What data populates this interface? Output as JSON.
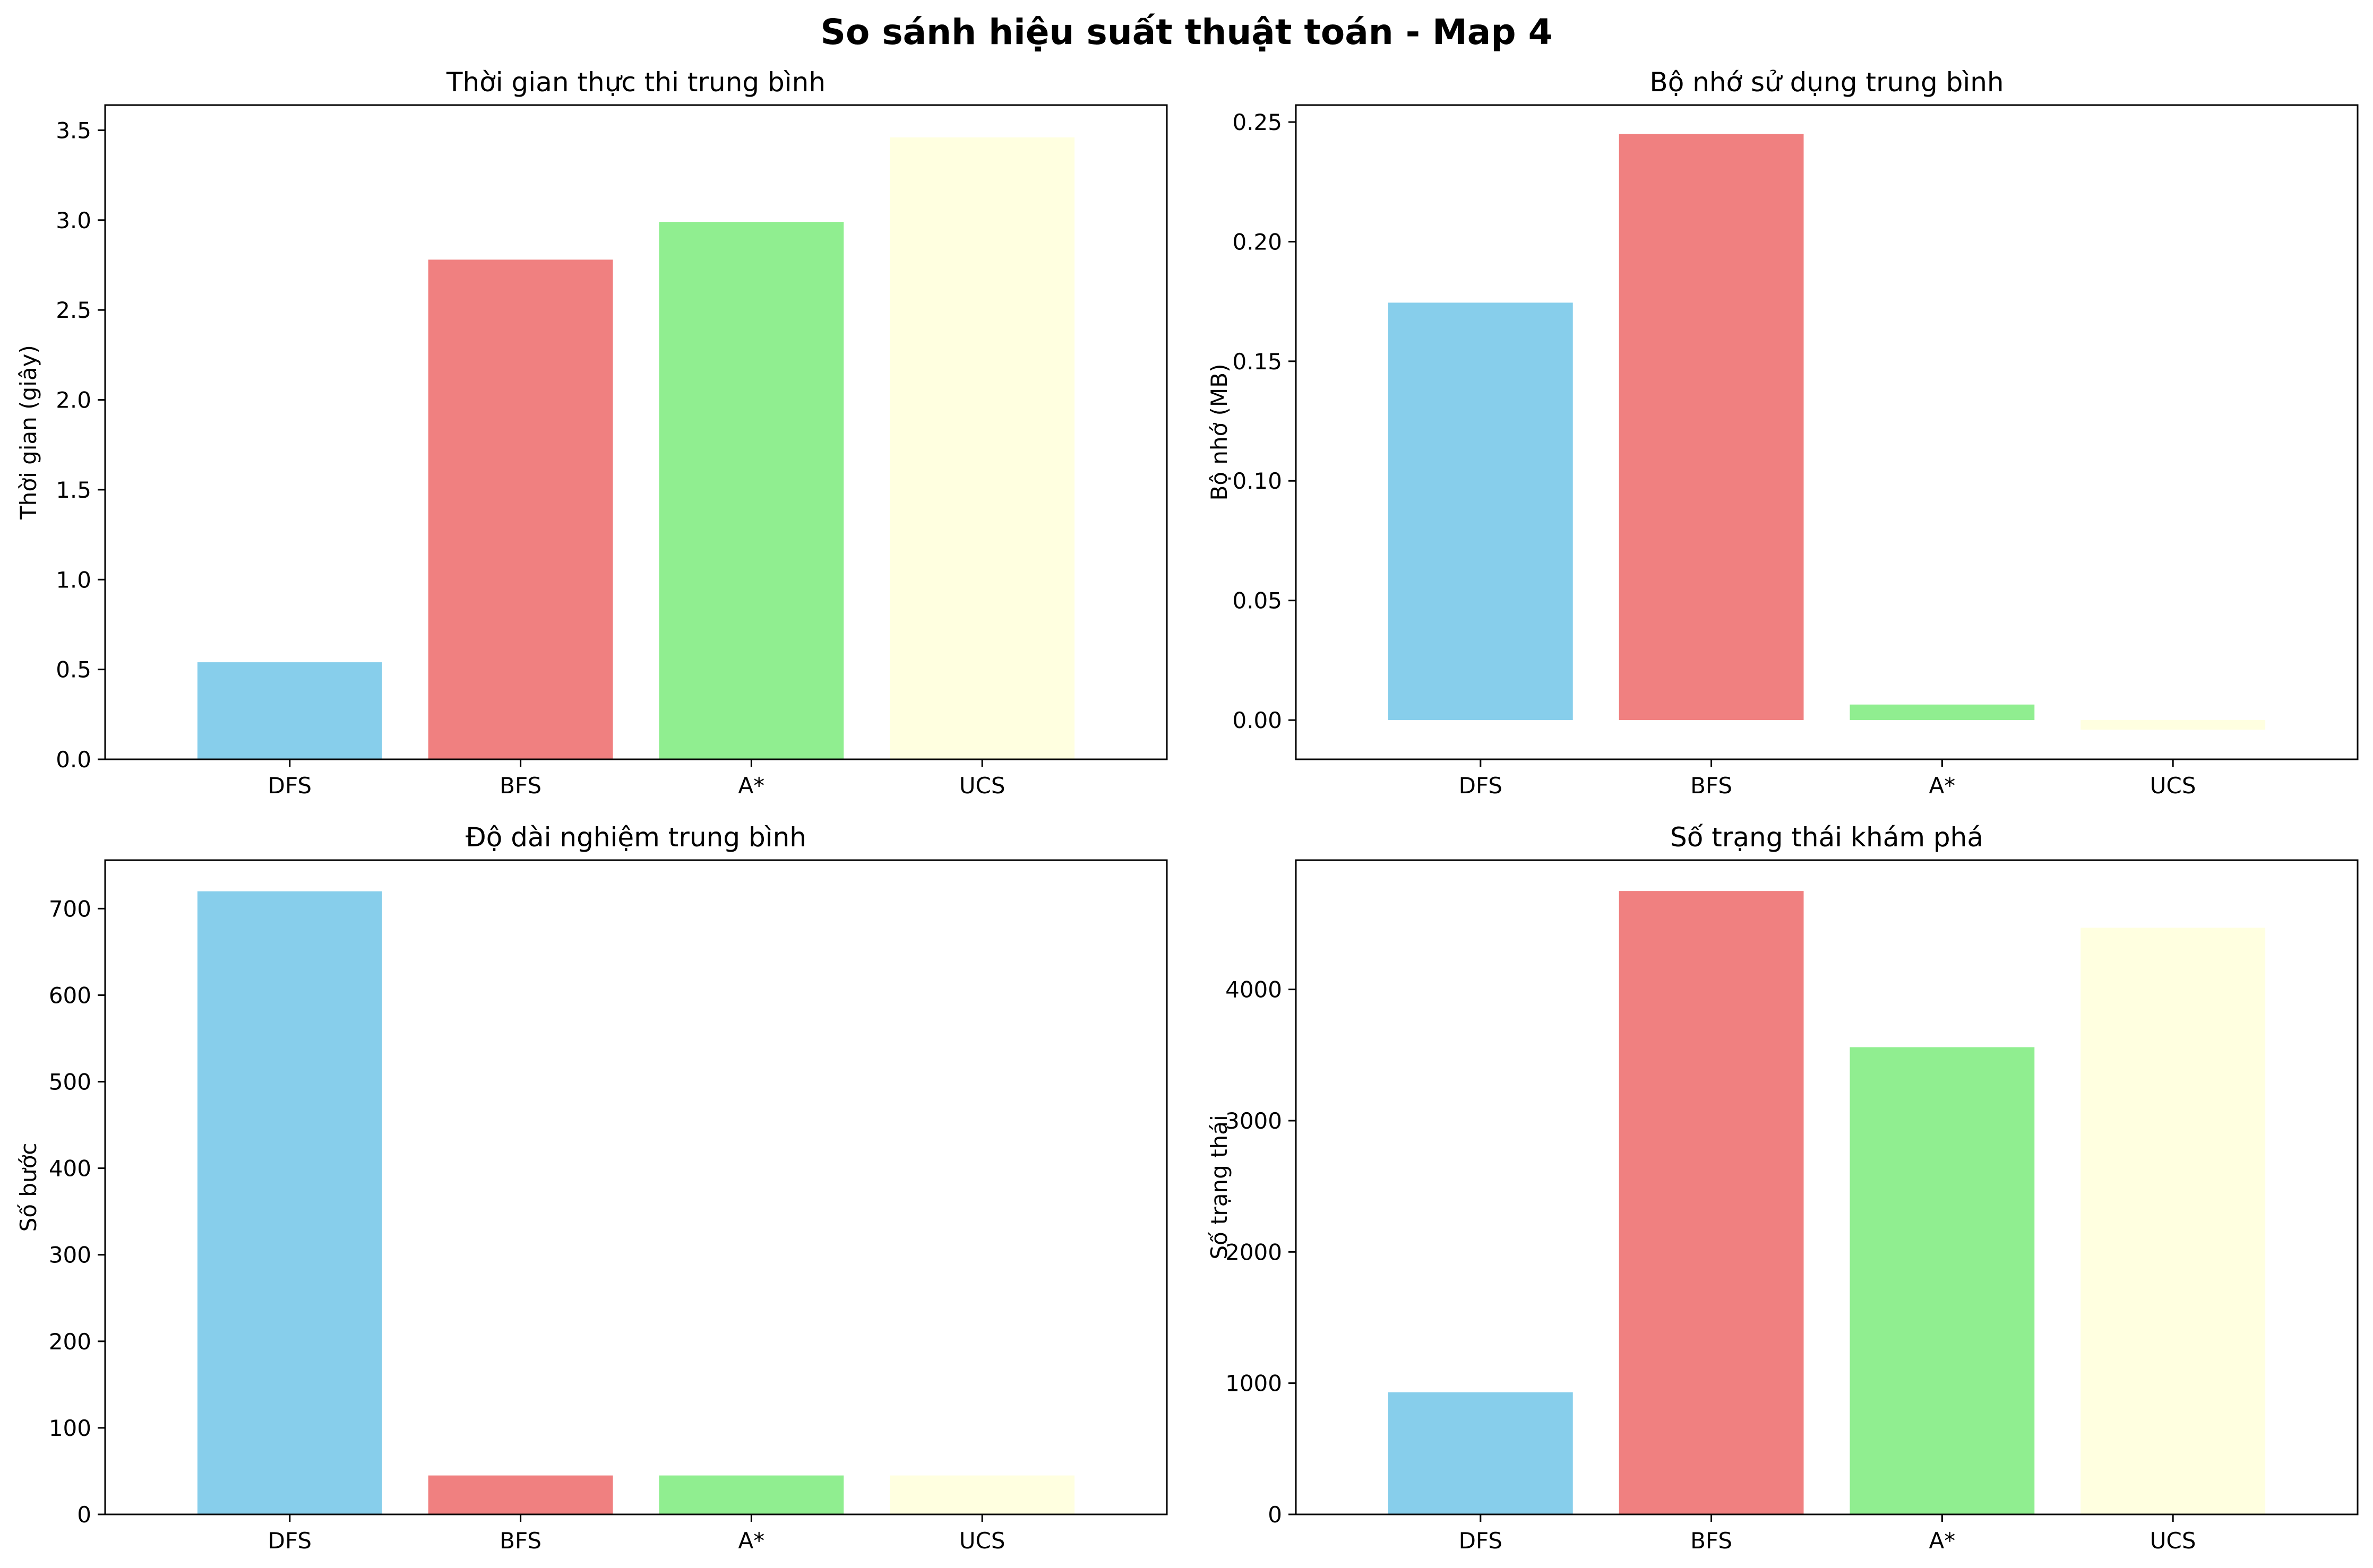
{
  "suptitle": "So sánh hiệu suất thuật toán - Map 4",
  "colors": {
    "DFS": "#87ceeb",
    "BFS": "#f08080",
    "A*": "#90ee90",
    "UCS": "#ffffe0"
  },
  "chart_data": [
    {
      "type": "bar",
      "title": "Thời gian thực thi trung bình",
      "xlabel": "",
      "ylabel": "Thời gian (giây)",
      "categories": [
        "DFS",
        "BFS",
        "A*",
        "UCS"
      ],
      "values": [
        0.54,
        2.78,
        2.99,
        3.46
      ],
      "ylim": [
        0,
        3.64
      ],
      "yticks": [
        0.0,
        0.5,
        1.0,
        1.5,
        2.0,
        2.5,
        3.0,
        3.5
      ],
      "ytick_labels": [
        "0.0",
        "0.5",
        "1.0",
        "1.5",
        "2.0",
        "2.5",
        "3.0",
        "3.5"
      ],
      "grid": false
    },
    {
      "type": "bar",
      "title": "Bộ nhớ sử dụng trung bình",
      "xlabel": "",
      "ylabel": "Bộ nhớ (MB)",
      "categories": [
        "DFS",
        "BFS",
        "A*",
        "UCS"
      ],
      "values": [
        0.1745,
        0.245,
        0.0065,
        -0.004
      ],
      "ylim": [
        -0.0164,
        0.2571
      ],
      "yticks": [
        0.0,
        0.05,
        0.1,
        0.15,
        0.2,
        0.25
      ],
      "ytick_labels": [
        "0.00",
        "0.05",
        "0.10",
        "0.15",
        "0.20",
        "0.25"
      ],
      "grid": false
    },
    {
      "type": "bar",
      "title": "Độ dài nghiệm trung bình",
      "xlabel": "",
      "ylabel": "Số bước",
      "categories": [
        "DFS",
        "BFS",
        "A*",
        "UCS"
      ],
      "values": [
        720,
        45,
        45,
        45
      ],
      "ylim": [
        0,
        756
      ],
      "yticks": [
        0,
        100,
        200,
        300,
        400,
        500,
        600,
        700
      ],
      "ytick_labels": [
        "0",
        "100",
        "200",
        "300",
        "400",
        "500",
        "600",
        "700"
      ],
      "grid": false
    },
    {
      "type": "bar",
      "title": "Số trạng thái khám phá",
      "xlabel": "",
      "ylabel": "Số trạng thái",
      "categories": [
        "DFS",
        "BFS",
        "A*",
        "UCS"
      ],
      "values": [
        930,
        4750,
        3560,
        4470
      ],
      "ylim": [
        0,
        4985
      ],
      "yticks": [
        0,
        1000,
        2000,
        3000,
        4000
      ],
      "ytick_labels": [
        "0",
        "1000",
        "2000",
        "3000",
        "4000"
      ],
      "grid": false
    }
  ]
}
